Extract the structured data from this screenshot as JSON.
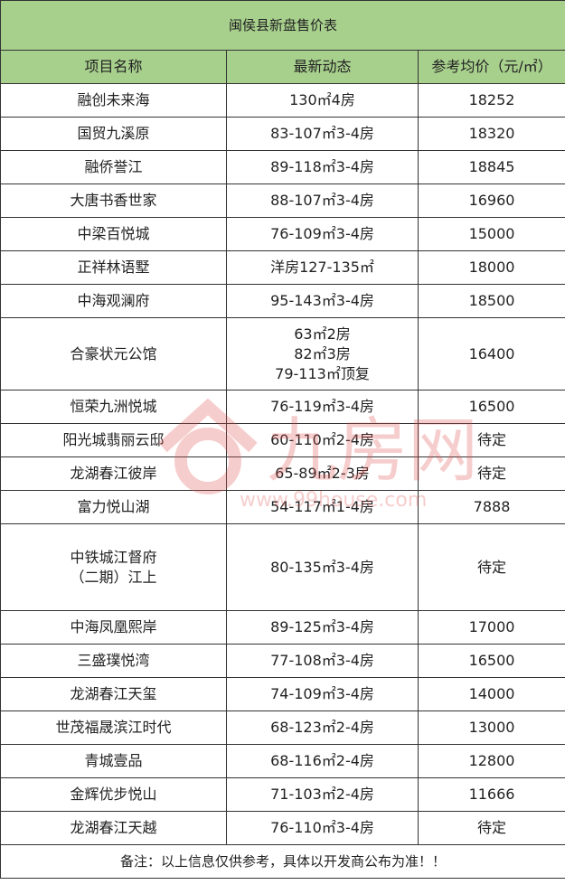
{
  "title": "闽侯县新盘售价表",
  "headers": [
    "项目名称",
    "最新动态",
    "参考均价（元/㎡）"
  ],
  "rows": [
    {
      "name": [
        "融创未来海"
      ],
      "info": [
        "130㎡4房"
      ],
      "price": "18252"
    },
    {
      "name": [
        "国贸九溪原"
      ],
      "info": [
        "83-107㎡3-4房"
      ],
      "price": "18320"
    },
    {
      "name": [
        "融侨誉江"
      ],
      "info": [
        "89-118㎡3-4房"
      ],
      "price": "18845"
    },
    {
      "name": [
        "大唐书香世家"
      ],
      "info": [
        "88-107㎡3-4房"
      ],
      "price": "16960"
    },
    {
      "name": [
        "中梁百悦城"
      ],
      "info": [
        "76-109㎡3-4房"
      ],
      "price": "15000"
    },
    {
      "name": [
        "正祥林语墅"
      ],
      "info": [
        "洋房127-135㎡"
      ],
      "price": "18000"
    },
    {
      "name": [
        "中海观澜府"
      ],
      "info": [
        "95-143㎡3-4房"
      ],
      "price": "18500"
    },
    {
      "name": [
        "合豪状元公馆"
      ],
      "info": [
        "63㎡2房",
        "82㎡3房",
        "79-113㎡顶复"
      ],
      "price": "16400"
    },
    {
      "name": [
        "恒荣九洲悦城"
      ],
      "info": [
        "76-119㎡3-4房"
      ],
      "price": "16500"
    },
    {
      "name": [
        "阳光城翡丽云邸"
      ],
      "info": [
        "60-110㎡2-4房"
      ],
      "price": "待定"
    },
    {
      "name": [
        "龙湖春江彼岸"
      ],
      "info": [
        "65-89㎡2-3房"
      ],
      "price": "待定"
    },
    {
      "name": [
        "富力悦山湖"
      ],
      "info": [
        "54-117㎡1-4房"
      ],
      "price": "7888"
    },
    {
      "name": [
        "中铁城江督府",
        "（二期）江上"
      ],
      "info": [
        "80-135㎡3-4房"
      ],
      "price": "待定"
    },
    {
      "name": [
        "中海凤凰熙岸"
      ],
      "info": [
        "89-125㎡3-4房"
      ],
      "price": "17000"
    },
    {
      "name": [
        "三盛璞悦湾"
      ],
      "info": [
        "77-108㎡3-4房"
      ],
      "price": "16500"
    },
    {
      "name": [
        "龙湖春江天玺"
      ],
      "info": [
        "74-109㎡3-4房"
      ],
      "price": "14000"
    },
    {
      "name": [
        "世茂福晟滨江时代"
      ],
      "info": [
        "68-123㎡2-4房"
      ],
      "price": "13000"
    },
    {
      "name": [
        "青城壹品"
      ],
      "info": [
        "68-116㎡2-4房"
      ],
      "price": "12800"
    },
    {
      "name": [
        "金辉优步悦山"
      ],
      "info": [
        "71-103㎡2-4房"
      ],
      "price": "11666"
    },
    {
      "name": [
        "龙湖春江天越"
      ],
      "info": [
        "76-110㎡3-4房"
      ],
      "price": "待定"
    }
  ],
  "footer": "备注：以上信息仅供参考，具体以开发商公布为准！！",
  "watermark": {
    "text": "九房网",
    "url": "www.99house.com",
    "color": "#e05050"
  },
  "colors": {
    "header_bg": "#a8d08d",
    "border": "#333333"
  }
}
